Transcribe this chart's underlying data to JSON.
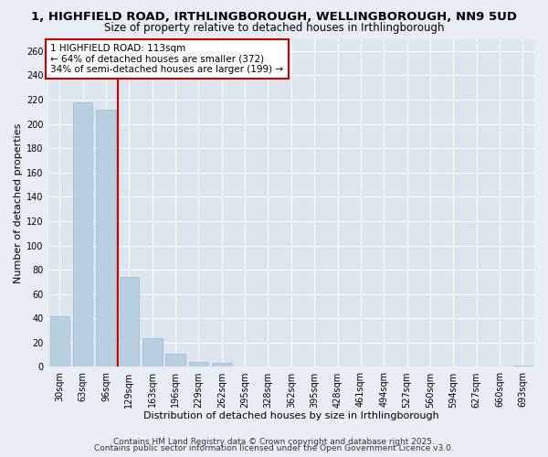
{
  "title": "1, HIGHFIELD ROAD, IRTHLINGBOROUGH, WELLINGBOROUGH, NN9 5UD",
  "subtitle": "Size of property relative to detached houses in Irthlingborough",
  "xlabel": "Distribution of detached houses by size in Irthlingborough",
  "ylabel": "Number of detached properties",
  "bar_color": "#b8cfe0",
  "bar_edge_color": "#98b8d0",
  "categories": [
    "30sqm",
    "63sqm",
    "96sqm",
    "129sqm",
    "163sqm",
    "196sqm",
    "229sqm",
    "262sqm",
    "295sqm",
    "328sqm",
    "362sqm",
    "395sqm",
    "428sqm",
    "461sqm",
    "494sqm",
    "527sqm",
    "560sqm",
    "594sqm",
    "627sqm",
    "660sqm",
    "693sqm"
  ],
  "values": [
    42,
    218,
    212,
    74,
    24,
    11,
    4,
    3,
    0,
    0,
    0,
    0,
    0,
    0,
    0,
    0,
    0,
    0,
    0,
    0,
    1
  ],
  "ylim": [
    0,
    270
  ],
  "yticks": [
    0,
    20,
    40,
    60,
    80,
    100,
    120,
    140,
    160,
    180,
    200,
    220,
    240,
    260
  ],
  "vline_x": 2.5,
  "vline_color": "#cc0000",
  "annotation_title": "1 HIGHFIELD ROAD: 113sqm",
  "annotation_line1": "← 64% of detached houses are smaller (372)",
  "annotation_line2": "34% of semi-detached houses are larger (199) →",
  "annotation_box_facecolor": "#ffffff",
  "annotation_box_edgecolor": "#cc0000",
  "footer_line1": "Contains HM Land Registry data © Crown copyright and database right 2025.",
  "footer_line2": "Contains public sector information licensed under the Open Government Licence v3.0.",
  "background_color": "#e8eef4",
  "plot_bg_color": "#dde6ee",
  "grid_color": "#ffffff",
  "title_fontsize": 9.5,
  "subtitle_fontsize": 8.5,
  "axis_label_fontsize": 8,
  "tick_fontsize": 7,
  "annotation_fontsize": 7.5,
  "footer_fontsize": 6.5
}
